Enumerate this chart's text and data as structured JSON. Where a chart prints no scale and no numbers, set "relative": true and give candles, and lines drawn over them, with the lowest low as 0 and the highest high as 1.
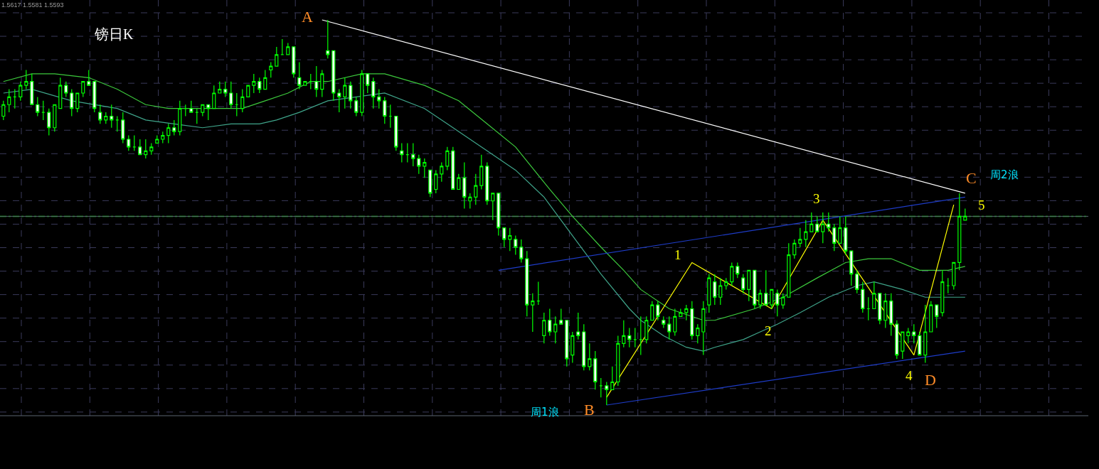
{
  "chart_data": {
    "type": "candlestick",
    "title": "镑日K",
    "relative": true,
    "grid": true,
    "color": "#00ff00",
    "annotations": [
      "1.5617 1.5581 1.5593",
      "A",
      "B",
      "C",
      "D",
      "1",
      "2",
      "3",
      "4",
      "5",
      "周1浪",
      "周2浪"
    ],
    "categories": [
      null,
      null,
      null,
      null,
      null,
      null,
      null,
      null,
      null,
      null,
      null,
      null,
      null,
      null,
      null,
      null,
      null,
      null,
      null,
      null,
      null,
      null,
      null,
      null,
      null,
      null,
      null,
      null,
      null,
      null,
      null,
      null,
      null,
      null,
      null,
      null,
      null,
      null,
      null,
      null,
      null,
      null,
      null,
      null,
      null,
      null,
      null,
      null,
      null,
      null,
      null,
      null,
      null,
      null,
      null,
      null,
      null,
      null,
      null,
      null,
      null,
      null,
      null,
      null,
      null,
      null,
      null,
      null,
      null,
      null,
      null,
      null,
      null,
      null,
      null,
      null,
      null,
      null,
      null,
      null,
      null,
      null,
      null,
      null,
      null,
      null,
      null,
      null,
      null,
      null,
      null,
      null,
      null,
      null,
      null,
      null,
      null,
      null,
      null,
      null,
      null,
      null,
      null,
      null,
      null,
      null,
      null,
      null,
      null,
      null,
      null,
      null,
      null,
      null,
      null,
      null,
      null,
      null,
      null,
      null,
      null,
      null,
      null,
      null,
      null,
      null,
      null,
      null,
      null,
      null,
      null,
      null,
      null,
      null,
      null,
      null,
      null,
      null,
      null,
      null,
      null,
      null,
      null,
      null,
      null,
      null,
      null,
      null,
      null,
      null,
      null,
      null,
      null,
      null,
      null,
      null,
      null,
      null,
      null,
      null,
      null,
      null,
      null,
      null,
      null,
      null,
      null,
      null,
      null,
      null
    ],
    "ohlc": [
      [
        0.75,
        0.79,
        0.74,
        0.78
      ],
      [
        0.78,
        0.82,
        0.76,
        0.8
      ],
      [
        0.8,
        0.82,
        0.77,
        0.8
      ],
      [
        0.8,
        0.84,
        0.79,
        0.83
      ],
      [
        0.83,
        0.87,
        0.82,
        0.84
      ],
      [
        0.84,
        0.86,
        0.78,
        0.78
      ],
      [
        0.78,
        0.8,
        0.75,
        0.76
      ],
      [
        0.76,
        0.79,
        0.74,
        0.76
      ],
      [
        0.76,
        0.77,
        0.7,
        0.72
      ],
      [
        0.72,
        0.78,
        0.71,
        0.78
      ],
      [
        0.77,
        0.85,
        0.77,
        0.83
      ],
      [
        0.83,
        0.84,
        0.8,
        0.81
      ],
      [
        0.81,
        0.82,
        0.75,
        0.77
      ],
      [
        0.77,
        0.81,
        0.76,
        0.81
      ],
      [
        0.81,
        0.84,
        0.8,
        0.84
      ],
      [
        0.84,
        0.87,
        0.83,
        0.83
      ],
      [
        0.84,
        0.84,
        0.76,
        0.77
      ],
      [
        0.76,
        0.78,
        0.73,
        0.74
      ],
      [
        0.74,
        0.76,
        0.73,
        0.75
      ],
      [
        0.75,
        0.78,
        0.72,
        0.74
      ],
      [
        0.74,
        0.75,
        0.71,
        0.74
      ],
      [
        0.74,
        0.76,
        0.68,
        0.69
      ],
      [
        0.69,
        0.7,
        0.66,
        0.67
      ],
      [
        0.67,
        0.7,
        0.66,
        0.67
      ],
      [
        0.67,
        0.69,
        0.65,
        0.65
      ],
      [
        0.65,
        0.69,
        0.64,
        0.66
      ],
      [
        0.66,
        0.68,
        0.65,
        0.67
      ],
      [
        0.68,
        0.7,
        0.68,
        0.69
      ],
      [
        0.69,
        0.71,
        0.68,
        0.7
      ],
      [
        0.7,
        0.73,
        0.68,
        0.72
      ],
      [
        0.72,
        0.74,
        0.7,
        0.71
      ],
      [
        0.71,
        0.79,
        0.7,
        0.77
      ],
      [
        0.77,
        0.78,
        0.75,
        0.77
      ],
      [
        0.77,
        0.79,
        0.76,
        0.76
      ],
      [
        0.76,
        0.77,
        0.73,
        0.76
      ],
      [
        0.76,
        0.78,
        0.75,
        0.78
      ],
      [
        0.78,
        0.78,
        0.74,
        0.77
      ],
      [
        0.77,
        0.83,
        0.77,
        0.81
      ],
      [
        0.81,
        0.84,
        0.81,
        0.82
      ],
      [
        0.82,
        0.84,
        0.8,
        0.81
      ],
      [
        0.81,
        0.84,
        0.77,
        0.78
      ],
      [
        0.78,
        0.81,
        0.75,
        0.78
      ],
      [
        0.77,
        0.82,
        0.76,
        0.8
      ],
      [
        0.8,
        0.83,
        0.8,
        0.83
      ],
      [
        0.83,
        0.86,
        0.81,
        0.84
      ],
      [
        0.84,
        0.85,
        0.81,
        0.82
      ],
      [
        0.82,
        0.87,
        0.82,
        0.85
      ],
      [
        0.87,
        0.89,
        0.85,
        0.88
      ],
      [
        0.88,
        0.93,
        0.88,
        0.91
      ],
      [
        0.91,
        0.95,
        0.91,
        0.91
      ],
      [
        0.91,
        0.94,
        0.91,
        0.93
      ],
      [
        0.93,
        0.93,
        0.85,
        0.86
      ],
      [
        0.85,
        0.89,
        0.82,
        0.83
      ],
      [
        0.83,
        0.84,
        0.83,
        0.84
      ],
      [
        0.84,
        0.86,
        0.82,
        0.84
      ],
      [
        0.84,
        0.88,
        0.8,
        0.82
      ],
      [
        0.82,
        0.87,
        0.8,
        0.86
      ],
      [
        0.92,
        1.0,
        0.9,
        0.91
      ],
      [
        0.92,
        0.92,
        0.79,
        0.81
      ],
      [
        0.81,
        0.82,
        0.76,
        0.8
      ],
      [
        0.8,
        0.85,
        0.77,
        0.83
      ],
      [
        0.83,
        0.84,
        0.77,
        0.79
      ],
      [
        0.79,
        0.8,
        0.75,
        0.76
      ],
      [
        0.76,
        0.87,
        0.75,
        0.86
      ],
      [
        0.86,
        0.86,
        0.81,
        0.83
      ],
      [
        0.84,
        0.85,
        0.77,
        0.8
      ],
      [
        0.8,
        0.82,
        0.77,
        0.79
      ],
      [
        0.79,
        0.8,
        0.73,
        0.75
      ],
      [
        0.75,
        0.78,
        0.72,
        0.75
      ],
      [
        0.75,
        0.75,
        0.66,
        0.67
      ],
      [
        0.66,
        0.68,
        0.63,
        0.65
      ],
      [
        0.65,
        0.68,
        0.63,
        0.65
      ],
      [
        0.65,
        0.68,
        0.62,
        0.64
      ],
      [
        0.64,
        0.65,
        0.6,
        0.62
      ],
      [
        0.62,
        0.64,
        0.59,
        0.63
      ],
      [
        0.61,
        0.61,
        0.54,
        0.55
      ],
      [
        0.56,
        0.61,
        0.55,
        0.6
      ],
      [
        0.6,
        0.63,
        0.58,
        0.62
      ],
      [
        0.62,
        0.67,
        0.61,
        0.66
      ],
      [
        0.66,
        0.67,
        0.56,
        0.56
      ],
      [
        0.56,
        0.6,
        0.56,
        0.59
      ],
      [
        0.59,
        0.63,
        0.51,
        0.54
      ],
      [
        0.53,
        0.55,
        0.51,
        0.54
      ],
      [
        0.54,
        0.6,
        0.52,
        0.57
      ],
      [
        0.57,
        0.65,
        0.56,
        0.62
      ],
      [
        0.62,
        0.63,
        0.52,
        0.53
      ],
      [
        0.53,
        0.55,
        0.48,
        0.55
      ],
      [
        0.55,
        0.55,
        0.44,
        0.46
      ],
      [
        0.46,
        0.46,
        0.41,
        0.43
      ],
      [
        0.43,
        0.46,
        0.4,
        0.44
      ],
      [
        0.43,
        0.44,
        0.39,
        0.41
      ],
      [
        0.41,
        0.43,
        0.37,
        0.38
      ],
      [
        0.38,
        0.4,
        0.23,
        0.26
      ],
      [
        0.26,
        0.29,
        0.19,
        0.27
      ],
      [
        0.27,
        0.32,
        0.26,
        0.27
      ],
      [
        0.18,
        0.24,
        0.16,
        0.22
      ],
      [
        0.22,
        0.25,
        0.18,
        0.19
      ],
      [
        0.19,
        0.23,
        0.16,
        0.21
      ],
      [
        0.22,
        0.25,
        0.21,
        0.21
      ],
      [
        0.22,
        0.22,
        0.1,
        0.12
      ],
      [
        0.13,
        0.19,
        0.11,
        0.18
      ],
      [
        0.19,
        0.24,
        0.17,
        0.18
      ],
      [
        0.19,
        0.21,
        0.09,
        0.1
      ],
      [
        0.1,
        0.16,
        0.09,
        0.12
      ],
      [
        0.12,
        0.14,
        0.04,
        0.06
      ],
      [
        0.05,
        0.07,
        0.02,
        0.05
      ],
      [
        0.05,
        0.06,
        0,
        0.04
      ],
      [
        0.04,
        0.1,
        0.04,
        0.06
      ],
      [
        0.06,
        0.18,
        0.05,
        0.16
      ],
      [
        0.16,
        0.22,
        0.15,
        0.18
      ],
      [
        0.18,
        0.2,
        0.15,
        0.17
      ],
      [
        0.17,
        0.2,
        0.15,
        0.17
      ],
      [
        0.17,
        0.23,
        0.13,
        0.17
      ],
      [
        0.17,
        0.23,
        0.16,
        0.22
      ],
      [
        0.22,
        0.27,
        0.22,
        0.26
      ],
      [
        0.26,
        0.27,
        0.22,
        0.23
      ],
      [
        0.22,
        0.23,
        0.2,
        0.21
      ],
      [
        0.21,
        0.23,
        0.17,
        0.19
      ],
      [
        0.19,
        0.25,
        0.18,
        0.23
      ],
      [
        0.23,
        0.25,
        0.23,
        0.24
      ],
      [
        0.24,
        0.26,
        0.22,
        0.25
      ],
      [
        0.25,
        0.27,
        0.17,
        0.18
      ],
      [
        0.18,
        0.21,
        0.16,
        0.2
      ],
      [
        0.19,
        0.27,
        0.13,
        0.25
      ],
      [
        0.26,
        0.34,
        0.24,
        0.33
      ],
      [
        0.32,
        0.34,
        0.26,
        0.28
      ],
      [
        0.28,
        0.33,
        0.26,
        0.31
      ],
      [
        0.31,
        0.33,
        0.3,
        0.32
      ],
      [
        0.32,
        0.37,
        0.31,
        0.36
      ],
      [
        0.36,
        0.37,
        0.33,
        0.34
      ],
      [
        0.33,
        0.34,
        0.29,
        0.3
      ],
      [
        0.3,
        0.35,
        0.27,
        0.35
      ],
      [
        0.35,
        0.35,
        0.25,
        0.26
      ],
      [
        0.26,
        0.3,
        0.25,
        0.29
      ],
      [
        0.29,
        0.35,
        0.26,
        0.26
      ],
      [
        0.26,
        0.3,
        0.25,
        0.3
      ],
      [
        0.29,
        0.3,
        0.23,
        0.26
      ],
      [
        0.26,
        0.29,
        0.25,
        0.28
      ],
      [
        0.28,
        0.42,
        0.28,
        0.39
      ],
      [
        0.39,
        0.43,
        0.38,
        0.42
      ],
      [
        0.42,
        0.46,
        0.41,
        0.43
      ],
      [
        0.43,
        0.48,
        0.41,
        0.45
      ],
      [
        0.45,
        0.5,
        0.45,
        0.47
      ],
      [
        0.47,
        0.49,
        0.45,
        0.45
      ],
      [
        0.45,
        0.5,
        0.42,
        0.47
      ],
      [
        0.47,
        0.5,
        0.45,
        0.46
      ],
      [
        0.46,
        0.47,
        0.4,
        0.42
      ],
      [
        0.42,
        0.49,
        0.42,
        0.46
      ],
      [
        0.46,
        0.49,
        0.39,
        0.4
      ],
      [
        0.4,
        0.4,
        0.31,
        0.34
      ],
      [
        0.34,
        0.35,
        0.29,
        0.3
      ],
      [
        0.3,
        0.32,
        0.24,
        0.25
      ],
      [
        0.25,
        0.28,
        0.22,
        0.25
      ],
      [
        0.25,
        0.32,
        0.25,
        0.29
      ],
      [
        0.29,
        0.29,
        0.21,
        0.22
      ],
      [
        0.22,
        0.29,
        0.2,
        0.27
      ],
      [
        0.27,
        0.29,
        0.18,
        0.21
      ],
      [
        0.21,
        0.22,
        0.12,
        0.13
      ],
      [
        0.14,
        0.19,
        0.12,
        0.19
      ],
      [
        0.18,
        0.2,
        0.16,
        0.19
      ],
      [
        0.19,
        0.21,
        0.16,
        0.18
      ],
      [
        0.18,
        0.19,
        0.13,
        0.13
      ],
      [
        0.13,
        0.26,
        0.11,
        0.19
      ],
      [
        0.19,
        0.27,
        0.19,
        0.26
      ],
      [
        0.26,
        0.26,
        0.2,
        0.23
      ],
      [
        0.24,
        0.35,
        0.23,
        0.32
      ],
      [
        0.31,
        0.33,
        0.29,
        0.31
      ],
      [
        0.31,
        0.37,
        0.3,
        0.37
      ],
      [
        0.37,
        0.55,
        0.35,
        0.49
      ],
      [
        0.48,
        0.51,
        0.48,
        0.49
      ]
    ],
    "series": [
      {
        "type": "line",
        "color": "#3cc83c",
        "values": [
          0.84,
          null,
          null,
          null,
          null,
          0.86,
          null,
          null,
          null,
          0.86,
          null,
          null,
          null,
          null,
          null,
          0.85,
          null,
          null,
          null,
          null,
          0.82,
          null,
          null,
          null,
          null,
          0.78,
          null,
          null,
          null,
          0.77,
          null,
          null,
          null,
          null,
          null,
          null,
          null,
          0.77,
          null,
          null,
          null,
          null,
          0.77,
          null,
          null,
          null,
          0.79,
          null,
          null,
          null,
          0.81,
          null,
          null,
          null,
          0.84,
          null,
          null,
          0.84,
          null,
          null,
          null,
          null,
          null,
          0.86,
          null,
          null,
          null,
          0.86,
          null,
          null,
          null,
          null,
          null,
          null,
          0.83,
          null,
          null,
          null,
          null,
          null,
          0.79,
          null,
          null,
          null,
          null,
          0.73,
          null,
          null,
          null,
          null,
          0.67,
          null,
          null,
          null,
          null,
          null,
          0.56,
          null,
          null,
          null,
          0.49,
          null,
          null,
          null,
          null,
          0.41,
          null,
          null,
          null,
          0.35,
          null,
          null,
          0.3,
          null,
          null,
          null,
          null,
          0.25,
          null,
          null,
          null,
          null,
          null,
          0.22,
          null,
          0.22,
          null,
          null,
          null,
          null,
          null,
          null,
          0.25,
          null,
          null,
          null,
          null,
          0.28,
          null,
          null,
          null,
          null,
          null,
          0.33,
          null,
          null,
          null,
          null,
          0.37,
          null,
          null,
          null,
          0.38,
          null,
          null,
          null,
          0.38,
          null,
          null,
          null,
          null,
          0.35,
          null,
          null,
          null,
          null,
          0.35,
          null,
          null,
          0.36
        ]
      },
      {
        "type": "line",
        "color": "#3fa48a",
        "values": [
          0.81,
          null,
          null,
          null,
          null,
          0.82,
          null,
          null,
          null,
          null,
          null,
          null,
          0.79,
          null,
          null,
          null,
          null,
          null,
          null,
          null,
          0.77,
          null,
          null,
          null,
          null,
          0.74,
          null,
          null,
          null,
          null,
          0.73,
          null,
          null,
          null,
          null,
          0.72,
          null,
          null,
          null,
          null,
          0.73,
          null,
          null,
          null,
          null,
          0.73,
          null,
          null,
          0.74,
          null,
          null,
          null,
          0.76,
          null,
          null,
          null,
          null,
          0.79,
          null,
          null,
          null,
          null,
          null,
          null,
          null,
          null,
          null,
          0.81,
          null,
          null,
          null,
          null,
          null,
          null,
          0.77,
          null,
          null,
          null,
          0.73,
          null,
          null,
          null,
          null,
          null,
          null,
          0.66,
          null,
          null,
          null,
          null,
          0.61,
          null,
          null,
          null,
          null,
          0.54,
          null,
          null,
          null,
          null,
          0.44,
          null,
          null,
          null,
          null,
          0.34,
          null,
          null,
          null,
          null,
          0.25,
          null,
          0.22,
          null,
          null,
          null,
          0.18,
          null,
          null,
          null,
          0.15,
          null,
          null,
          0.14,
          null,
          0.15,
          null,
          null,
          null,
          null,
          0.17,
          null,
          null,
          0.19,
          null,
          null,
          0.21,
          null,
          null,
          null,
          0.24,
          null,
          null,
          null,
          null,
          0.28,
          null,
          null,
          null,
          null,
          0.31,
          null,
          null,
          0.32,
          null,
          null,
          null,
          null,
          0.3,
          null,
          null,
          null,
          0.28,
          null,
          null,
          null,
          0.28,
          null,
          null,
          0.28
        ]
      },
      {
        "type": "line",
        "color": "#ffffff",
        "values": [
          null,
          null,
          null,
          null,
          null,
          null,
          null,
          null,
          null,
          null,
          null,
          null,
          null,
          null,
          null,
          null,
          null,
          null,
          null,
          null,
          null,
          null,
          null,
          null,
          null,
          null,
          null,
          null,
          null,
          null,
          null,
          null,
          null,
          null,
          null,
          null,
          null,
          null,
          null,
          null,
          null,
          null,
          null,
          null,
          null,
          null,
          null,
          null,
          null,
          null,
          null,
          null,
          null,
          null,
          null,
          null,
          1.0,
          null,
          null,
          null,
          null,
          null,
          null,
          null,
          null,
          null,
          null,
          null,
          null,
          null,
          null,
          null,
          null,
          null,
          null,
          null,
          null,
          null,
          null,
          null,
          null,
          null,
          null,
          null,
          null,
          null,
          null,
          null,
          null,
          null,
          null,
          null,
          null,
          null,
          null,
          null,
          null,
          null,
          null,
          null,
          null,
          null,
          null,
          null,
          null,
          null,
          null,
          null,
          null,
          null,
          null,
          null,
          null,
          null,
          null,
          null,
          null,
          null,
          null,
          null,
          null,
          null,
          null,
          null,
          null,
          null,
          null,
          null,
          null,
          null,
          null,
          null,
          null,
          null,
          null,
          null,
          null,
          null,
          null,
          null,
          null,
          null,
          null,
          null,
          null,
          null,
          null,
          null,
          null,
          null,
          null,
          null,
          null,
          null,
          null,
          null,
          null,
          null,
          null,
          null,
          null,
          null,
          null,
          null,
          null,
          null,
          null,
          null,
          null,
          0.55
        ]
      },
      {
        "type": "line",
        "color": "#1e3cc8",
        "values": [
          null,
          null,
          null,
          null,
          null,
          null,
          null,
          null,
          null,
          null,
          null,
          null,
          null,
          null,
          null,
          null,
          null,
          null,
          null,
          null,
          null,
          null,
          null,
          null,
          null,
          null,
          null,
          null,
          null,
          null,
          null,
          null,
          null,
          null,
          null,
          null,
          null,
          null,
          null,
          null,
          null,
          null,
          null,
          null,
          null,
          null,
          null,
          null,
          null,
          null,
          null,
          null,
          null,
          null,
          null,
          null,
          null,
          null,
          null,
          null,
          null,
          null,
          null,
          null,
          null,
          null,
          null,
          null,
          null,
          null,
          null,
          null,
          null,
          null,
          null,
          null,
          null,
          null,
          null,
          null,
          null,
          null,
          null,
          null,
          null,
          null,
          null,
          0.35,
          null,
          null,
          null,
          null,
          null,
          null,
          null,
          null,
          null,
          null,
          null,
          null,
          null,
          null,
          null,
          null,
          null,
          null,
          null,
          null,
          null,
          null,
          null,
          null,
          null,
          null,
          null,
          null,
          null,
          null,
          null,
          null,
          null,
          null,
          null,
          null,
          null,
          null,
          null,
          null,
          null,
          null,
          null,
          null,
          null,
          null,
          null,
          null,
          null,
          null,
          null,
          null,
          null,
          null,
          null,
          null,
          null,
          null,
          null,
          null,
          null,
          null,
          null,
          null,
          null,
          null,
          null,
          null,
          null,
          null,
          null,
          null,
          null,
          null,
          null,
          null,
          null,
          null,
          null,
          null,
          null,
          0.54
        ]
      },
      {
        "type": "line",
        "color": "#1e3cc8",
        "values": [
          null,
          null,
          null,
          null,
          null,
          null,
          null,
          null,
          null,
          null,
          null,
          null,
          null,
          null,
          null,
          null,
          null,
          null,
          null,
          null,
          null,
          null,
          null,
          null,
          null,
          null,
          null,
          null,
          null,
          null,
          null,
          null,
          null,
          null,
          null,
          null,
          null,
          null,
          null,
          null,
          null,
          null,
          null,
          null,
          null,
          null,
          null,
          null,
          null,
          null,
          null,
          null,
          null,
          null,
          null,
          null,
          null,
          null,
          null,
          null,
          null,
          null,
          null,
          null,
          null,
          null,
          null,
          null,
          null,
          null,
          null,
          null,
          null,
          null,
          null,
          null,
          null,
          null,
          null,
          null,
          null,
          null,
          null,
          null,
          null,
          null,
          null,
          null,
          null,
          null,
          null,
          null,
          null,
          null,
          null,
          null,
          null,
          null,
          null,
          null,
          null,
          null,
          null,
          null,
          null,
          null,
          0.0,
          null,
          null,
          null,
          null,
          null,
          null,
          null,
          null,
          null,
          null,
          null,
          null,
          null,
          null,
          null,
          null,
          null,
          null,
          null,
          null,
          null,
          null,
          null,
          null,
          null,
          null,
          null,
          null,
          null,
          null,
          null,
          null,
          null,
          null,
          null,
          null,
          null,
          null,
          null,
          null,
          null,
          null,
          null,
          null,
          null,
          null,
          null,
          null,
          null,
          null,
          null,
          null,
          null,
          null,
          null,
          null,
          null,
          null,
          null,
          null,
          null,
          null,
          0.14
        ]
      },
      {
        "type": "line",
        "color": "#ffff00",
        "values": [
          null,
          null,
          null,
          null,
          null,
          null,
          null,
          null,
          null,
          null,
          null,
          null,
          null,
          null,
          null,
          null,
          null,
          null,
          null,
          null,
          null,
          null,
          null,
          null,
          null,
          null,
          null,
          null,
          null,
          null,
          null,
          null,
          null,
          null,
          null,
          null,
          null,
          null,
          null,
          null,
          null,
          null,
          null,
          null,
          null,
          null,
          null,
          null,
          null,
          null,
          null,
          null,
          null,
          null,
          null,
          null,
          null,
          null,
          null,
          null,
          null,
          null,
          null,
          null,
          null,
          null,
          null,
          null,
          null,
          null,
          null,
          null,
          null,
          null,
          null,
          null,
          null,
          null,
          null,
          null,
          null,
          null,
          null,
          null,
          null,
          null,
          null,
          null,
          null,
          null,
          null,
          null,
          null,
          null,
          null,
          null,
          null,
          null,
          null,
          null,
          null,
          null,
          null,
          null,
          null,
          null,
          0.02,
          null,
          null,
          null,
          null,
          null,
          null,
          null,
          null,
          null,
          null,
          null,
          null,
          null,
          null,
          0.37,
          null,
          null,
          null,
          null,
          null,
          null,
          null,
          null,
          null,
          null,
          null,
          null,
          null,
          0.25,
          null,
          null,
          null,
          null,
          null,
          null,
          null,
          null,
          0.48,
          null,
          null,
          null,
          null,
          null,
          null,
          null,
          null,
          null,
          null,
          null,
          null,
          null,
          null,
          null,
          0.13,
          null,
          null,
          null,
          null,
          null,
          null,
          0.52,
          null,
          null
        ]
      }
    ],
    "ref_lines": [
      {
        "axis": "y",
        "value": 0.49,
        "color": "#00c800",
        "line_style": "dashed"
      },
      {
        "axis": "y",
        "value": 0.49,
        "color": "#5a6470",
        "line_style": "solid"
      }
    ]
  }
}
